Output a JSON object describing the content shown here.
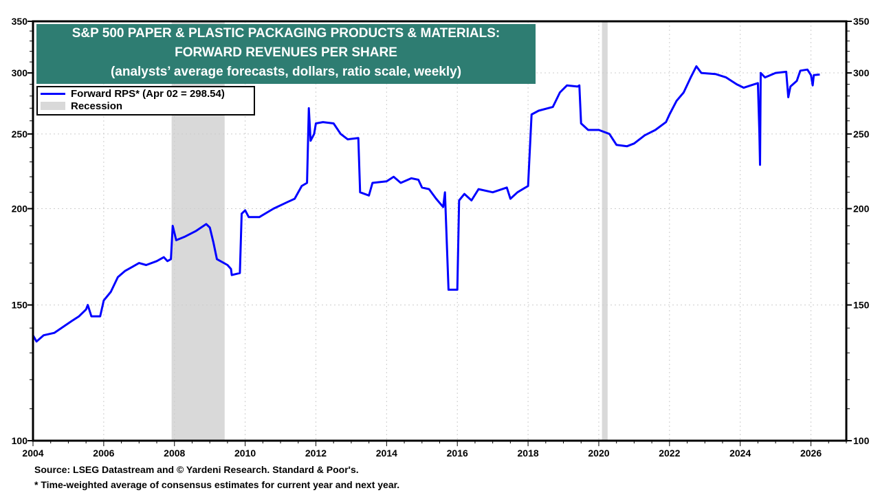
{
  "chart_data": {
    "type": "line",
    "title": "S&P 500 PAPER & PLASTIC PACKAGING PRODUCTS & MATERIALS:",
    "title_line2": "FORWARD REVENUES PER SHARE",
    "subtitle": "(analysts’ average forecasts, dollars, ratio scale, weekly)",
    "y_scale": "log",
    "ylim": [
      100,
      350
    ],
    "xlim": [
      2004,
      2027
    ],
    "y_ticks": [
      100,
      150,
      200,
      250,
      300,
      350
    ],
    "x_ticks": [
      2004,
      2006,
      2008,
      2010,
      2012,
      2014,
      2016,
      2018,
      2020,
      2022,
      2024,
      2026
    ],
    "grid": true,
    "legend_placement": "top-left",
    "series": [
      {
        "name": "Forward RPS* (Apr 02 = 298.54)",
        "color": "#0000ff",
        "points": [
          [
            2004.0,
            137
          ],
          [
            2004.1,
            134.5
          ],
          [
            2004.3,
            137
          ],
          [
            2004.6,
            138
          ],
          [
            2004.9,
            141
          ],
          [
            2005.1,
            143
          ],
          [
            2005.3,
            145
          ],
          [
            2005.5,
            148
          ],
          [
            2005.55,
            150
          ],
          [
            2005.65,
            145
          ],
          [
            2005.9,
            145
          ],
          [
            2006.0,
            152
          ],
          [
            2006.2,
            156
          ],
          [
            2006.4,
            163
          ],
          [
            2006.6,
            166
          ],
          [
            2006.8,
            168
          ],
          [
            2007.0,
            170
          ],
          [
            2007.2,
            169
          ],
          [
            2007.5,
            171
          ],
          [
            2007.7,
            173
          ],
          [
            2007.8,
            171
          ],
          [
            2007.9,
            172
          ],
          [
            2007.95,
            190
          ],
          [
            2008.05,
            182
          ],
          [
            2008.3,
            184
          ],
          [
            2008.6,
            187
          ],
          [
            2008.9,
            191
          ],
          [
            2009.0,
            189
          ],
          [
            2009.1,
            181
          ],
          [
            2009.2,
            172
          ],
          [
            2009.5,
            169
          ],
          [
            2009.6,
            167
          ],
          [
            2009.62,
            164
          ],
          [
            2009.85,
            165
          ],
          [
            2009.9,
            197
          ],
          [
            2010.0,
            199
          ],
          [
            2010.1,
            195
          ],
          [
            2010.4,
            195
          ],
          [
            2010.8,
            200
          ],
          [
            2011.2,
            204
          ],
          [
            2011.4,
            206
          ],
          [
            2011.6,
            214
          ],
          [
            2011.75,
            216
          ],
          [
            2011.8,
            270
          ],
          [
            2011.85,
            245
          ],
          [
            2011.95,
            250
          ],
          [
            2012.0,
            258
          ],
          [
            2012.2,
            259
          ],
          [
            2012.5,
            258
          ],
          [
            2012.7,
            250
          ],
          [
            2012.9,
            246
          ],
          [
            2013.2,
            247
          ],
          [
            2013.25,
            210
          ],
          [
            2013.5,
            208
          ],
          [
            2013.6,
            216
          ],
          [
            2014.0,
            217
          ],
          [
            2014.2,
            220
          ],
          [
            2014.4,
            216
          ],
          [
            2014.7,
            219
          ],
          [
            2014.9,
            218
          ],
          [
            2015.0,
            213
          ],
          [
            2015.2,
            212
          ],
          [
            2015.4,
            206
          ],
          [
            2015.6,
            201
          ],
          [
            2015.65,
            210
          ],
          [
            2015.75,
            157
          ],
          [
            2016.0,
            157
          ],
          [
            2016.05,
            205
          ],
          [
            2016.2,
            209
          ],
          [
            2016.4,
            205
          ],
          [
            2016.6,
            212
          ],
          [
            2017.0,
            210
          ],
          [
            2017.4,
            213
          ],
          [
            2017.5,
            206
          ],
          [
            2017.7,
            210
          ],
          [
            2018.0,
            214
          ],
          [
            2018.1,
            265
          ],
          [
            2018.3,
            268
          ],
          [
            2018.7,
            271
          ],
          [
            2018.9,
            283
          ],
          [
            2019.1,
            289
          ],
          [
            2019.4,
            288
          ],
          [
            2019.45,
            289
          ],
          [
            2019.5,
            258
          ],
          [
            2019.7,
            253
          ],
          [
            2020.0,
            253
          ],
          [
            2020.3,
            250
          ],
          [
            2020.5,
            242
          ],
          [
            2020.8,
            241
          ],
          [
            2021.0,
            243
          ],
          [
            2021.3,
            249
          ],
          [
            2021.6,
            253
          ],
          [
            2021.9,
            259
          ],
          [
            2022.0,
            265
          ],
          [
            2022.2,
            276
          ],
          [
            2022.4,
            283
          ],
          [
            2022.6,
            296
          ],
          [
            2022.76,
            306
          ],
          [
            2022.9,
            300
          ],
          [
            2023.3,
            299
          ],
          [
            2023.6,
            296
          ],
          [
            2023.9,
            290
          ],
          [
            2024.1,
            287
          ],
          [
            2024.3,
            289
          ],
          [
            2024.5,
            291
          ],
          [
            2024.54,
            252
          ],
          [
            2024.56,
            228
          ],
          [
            2024.58,
            300
          ],
          [
            2024.7,
            296
          ],
          [
            2025.0,
            300
          ],
          [
            2025.3,
            301
          ],
          [
            2025.36,
            279
          ],
          [
            2025.42,
            288
          ],
          [
            2025.6,
            293
          ],
          [
            2025.7,
            302
          ],
          [
            2025.9,
            303
          ],
          [
            2026.0,
            298
          ],
          [
            2026.05,
            289
          ],
          [
            2026.08,
            298
          ],
          [
            2026.25,
            298.54
          ]
        ]
      }
    ],
    "recessions": [
      [
        2007.92,
        2009.42
      ],
      [
        2020.09,
        2020.25
      ]
    ],
    "recession_color": "#d9d9d9",
    "legend": {
      "series_label": "Forward RPS* (Apr 02 = 298.54)",
      "recession_label": "Recession"
    }
  },
  "footer": {
    "source": "Source: LSEG Datastream and © Yardeni Research. Standard & Poor's.",
    "note": "* Time-weighted average of consensus estimates for current year and next year."
  },
  "colors": {
    "title_bg": "#2e7d72",
    "line": "#0000ff",
    "recession": "#d9d9d9"
  }
}
